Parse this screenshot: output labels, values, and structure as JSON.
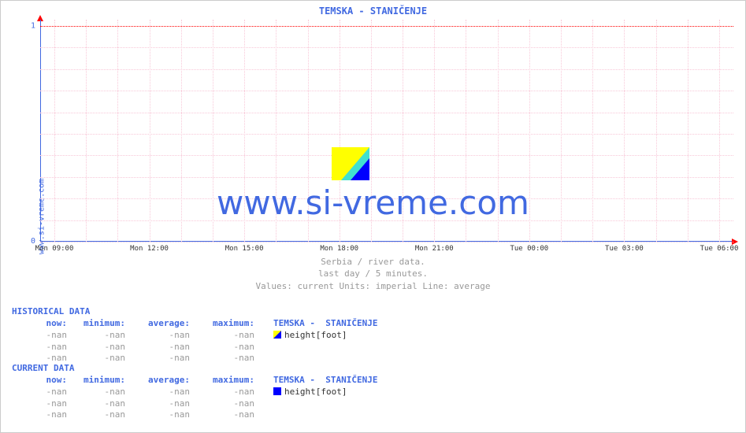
{
  "chart": {
    "title": "TEMSKA -  STANIČENJE",
    "ylabel_left": "www.si-vreme.com",
    "watermark": "www.si-vreme.com",
    "type": "line",
    "background_color": "#ffffff",
    "grid_color": "#f8c8d8",
    "axis_color": "#4169e1",
    "arrow_color": "#ff0000",
    "title_color": "#4169e1",
    "title_fontsize": 12,
    "watermark_color": "#4169e1",
    "watermark_fontsize": 42,
    "ylim": [
      0,
      1
    ],
    "yticks": [
      0,
      1
    ],
    "grid_minor_y_count": 10,
    "xticks": [
      "Mon 09:00",
      "Mon 12:00",
      "Mon 15:00",
      "Mon 18:00",
      "Mon 21:00",
      "Tue 00:00",
      "Tue 03:00",
      "Tue 06:00"
    ],
    "series": [],
    "captions": {
      "line1": "Serbia / river data.",
      "line2": "last day / 5 minutes.",
      "line3": "Values: current  Units: imperial  Line: average"
    }
  },
  "historical": {
    "title": "HISTORICAL DATA",
    "headers": {
      "now": "now",
      "min": "minimum",
      "avg": "average",
      "max": "maximum",
      "station": "TEMSKA -  STANIČENJE"
    },
    "rows": [
      {
        "now": "-nan",
        "min": "-nan",
        "avg": "-nan",
        "max": "-nan",
        "label": "height[foot]",
        "marker": "hist"
      },
      {
        "now": "-nan",
        "min": "-nan",
        "avg": "-nan",
        "max": "-nan"
      },
      {
        "now": "-nan",
        "min": "-nan",
        "avg": "-nan",
        "max": "-nan"
      }
    ]
  },
  "current": {
    "title": "CURRENT DATA",
    "headers": {
      "now": "now",
      "min": "minimum",
      "avg": "average",
      "max": "maximum",
      "station": "TEMSKA -  STANIČENJE"
    },
    "rows": [
      {
        "now": "-nan",
        "min": "-nan",
        "avg": "-nan",
        "max": "-nan",
        "label": "height[foot]",
        "marker": "cur"
      },
      {
        "now": "-nan",
        "min": "-nan",
        "avg": "-nan",
        "max": "-nan"
      },
      {
        "now": "-nan",
        "min": "-nan",
        "avg": "-nan",
        "max": "-nan"
      }
    ]
  }
}
